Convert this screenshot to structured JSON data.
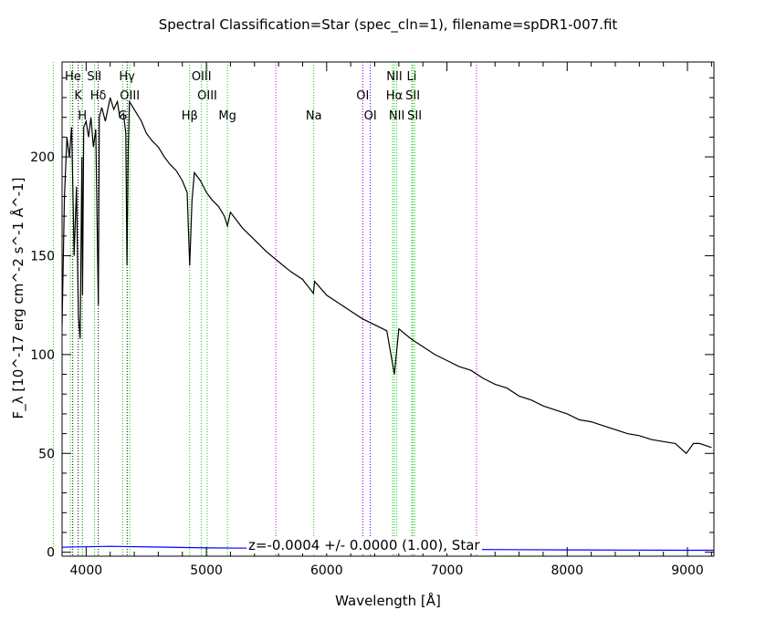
{
  "chart_data": {
    "type": "line",
    "title": "Spectral Classification=Star (spec_cln=1), filename=spDR1-007.fit",
    "xlabel": "Wavelength [Å]",
    "ylabel": "F_λ [10^-17 erg cm^-2 s^-1 Å^-1]",
    "xlim": [
      3800,
      9220
    ],
    "ylim": [
      -2,
      248
    ],
    "x_ticks": [
      4000,
      5000,
      6000,
      7000,
      8000,
      9000
    ],
    "y_ticks": [
      0,
      50,
      100,
      150,
      200
    ],
    "grid": false,
    "annotation": "z=-0.0004 +/- 0.0000 (1.00), Star",
    "series": [
      {
        "name": "",
        "color": "#000000",
        "x": [
          3800,
          3820,
          3840,
          3860,
          3880,
          3900,
          3920,
          3935,
          3950,
          3965,
          3970,
          3980,
          4000,
          4020,
          4040,
          4060,
          4080,
          4101,
          4110,
          4130,
          4160,
          4200,
          4230,
          4260,
          4280,
          4310,
          4330,
          4340,
          4350,
          4360,
          4380,
          4420,
          4460,
          4500,
          4550,
          4600,
          4650,
          4700,
          4750,
          4800,
          4840,
          4861,
          4880,
          4900,
          4950,
          5000,
          5050,
          5100,
          5150,
          5175,
          5200,
          5250,
          5300,
          5400,
          5500,
          5600,
          5700,
          5800,
          5890,
          5900,
          6000,
          6100,
          6200,
          6300,
          6400,
          6500,
          6563,
          6600,
          6700,
          6800,
          6900,
          7000,
          7100,
          7200,
          7300,
          7400,
          7500,
          7600,
          7700,
          7800,
          7900,
          8000,
          8100,
          8200,
          8300,
          8400,
          8500,
          8600,
          8700,
          8800,
          8900,
          8990,
          9050,
          9100,
          9150,
          9200
        ],
        "y": [
          115,
          180,
          210,
          200,
          215,
          150,
          185,
          120,
          108,
          200,
          130,
          215,
          218,
          210,
          220,
          205,
          214,
          125,
          220,
          225,
          218,
          230,
          224,
          228,
          220,
          222,
          212,
          145,
          205,
          228,
          226,
          222,
          218,
          212,
          208,
          205,
          200,
          196,
          193,
          188,
          182,
          145,
          178,
          192,
          188,
          182,
          178,
          175,
          170,
          165,
          172,
          168,
          164,
          158,
          152,
          147,
          142,
          138,
          131,
          137,
          130,
          126,
          122,
          118,
          115,
          112,
          90,
          113,
          108,
          104,
          100,
          97,
          94,
          92,
          88,
          85,
          83,
          79,
          77,
          74,
          72,
          70,
          67,
          66,
          64,
          62,
          60,
          59,
          57,
          56,
          55,
          50,
          55,
          55,
          54,
          53
        ]
      },
      {
        "name": "",
        "color": "#0000ff",
        "x": [
          3800,
          4200,
          4600,
          5000,
          5500,
          6000,
          6500,
          7000,
          7500,
          8000,
          8500,
          9000,
          9220
        ],
        "y": [
          2.5,
          3,
          2.6,
          2.2,
          2,
          1.8,
          1.6,
          1.4,
          1.3,
          1.2,
          1.1,
          1,
          1
        ]
      }
    ],
    "line_markers": [
      {
        "x": 3889,
        "color": "#000000"
      },
      {
        "x": 3934,
        "color": "#000000"
      },
      {
        "x": 3969,
        "color": "#000000"
      },
      {
        "x": 4101,
        "color": "#000000"
      },
      {
        "x": 4341,
        "color": "#000000"
      },
      {
        "x": 4861,
        "color": "#00cc00"
      },
      {
        "x": 3727,
        "color": "#00cc00"
      },
      {
        "x": 3869,
        "color": "#00cc00"
      },
      {
        "x": 3970,
        "color": "#00cc00"
      },
      {
        "x": 4070,
        "color": "#00cc00"
      },
      {
        "x": 4304,
        "color": "#00cc00"
      },
      {
        "x": 4363,
        "color": "#00cc00"
      },
      {
        "x": 4959,
        "color": "#00cc00"
      },
      {
        "x": 5007,
        "color": "#00cc00"
      },
      {
        "x": 5175,
        "color": "#00cc00"
      },
      {
        "x": 5577,
        "color": "#cc00cc"
      },
      {
        "x": 5893,
        "color": "#00cc00"
      },
      {
        "x": 6300,
        "color": "#0000ff"
      },
      {
        "x": 6300,
        "color": "#cc00cc"
      },
      {
        "x": 6363,
        "color": "#0000ff"
      },
      {
        "x": 6548,
        "color": "#00cc00"
      },
      {
        "x": 6563,
        "color": "#00cc00"
      },
      {
        "x": 6583,
        "color": "#00cc00"
      },
      {
        "x": 6707,
        "color": "#00cc00"
      },
      {
        "x": 6716,
        "color": "#00cc00"
      },
      {
        "x": 6731,
        "color": "#00cc00"
      },
      {
        "x": 7246,
        "color": "#cc00cc"
      }
    ],
    "line_labels": [
      {
        "text": "He",
        "x": 3890,
        "row": 0
      },
      {
        "text": "SII",
        "x": 4068,
        "row": 0
      },
      {
        "text": "Hγ",
        "x": 4340,
        "row": 0
      },
      {
        "text": "OIII",
        "x": 4959,
        "row": 0
      },
      {
        "text": "NII",
        "x": 6563,
        "row": 0
      },
      {
        "text": "Li",
        "x": 6707,
        "row": 0
      },
      {
        "text": "K",
        "x": 3934,
        "row": 1
      },
      {
        "text": "Hδ",
        "x": 4101,
        "row": 1
      },
      {
        "text": "OIII",
        "x": 4363,
        "row": 1
      },
      {
        "text": "OIII",
        "x": 5007,
        "row": 1
      },
      {
        "text": "OI",
        "x": 6300,
        "row": 1
      },
      {
        "text": "Hα",
        "x": 6563,
        "row": 1
      },
      {
        "text": "SII",
        "x": 6716,
        "row": 1
      },
      {
        "text": "H",
        "x": 3969,
        "row": 2
      },
      {
        "text": "G",
        "x": 4304,
        "row": 2
      },
      {
        "text": "Hβ",
        "x": 4861,
        "row": 2
      },
      {
        "text": "Mg",
        "x": 5175,
        "row": 2
      },
      {
        "text": "Na",
        "x": 5893,
        "row": 2
      },
      {
        "text": "OI",
        "x": 6363,
        "row": 2
      },
      {
        "text": "NII",
        "x": 6583,
        "row": 2
      },
      {
        "text": "SII",
        "x": 6731,
        "row": 2
      }
    ]
  }
}
